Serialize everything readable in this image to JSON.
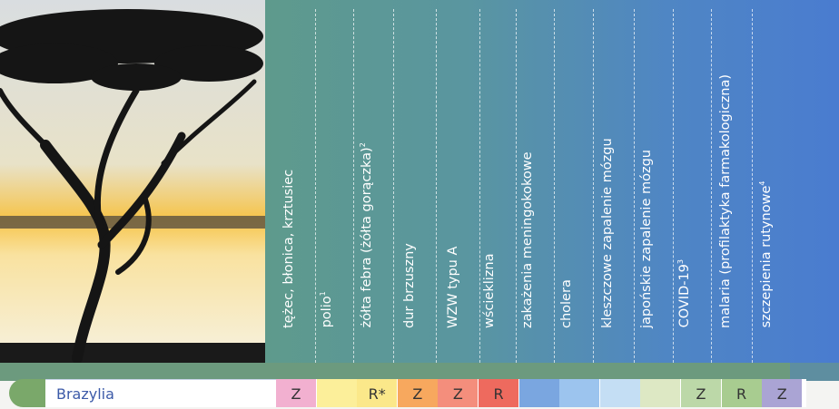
{
  "columns": [
    {
      "label": "tężec, błonica, krztusiec",
      "sup": ""
    },
    {
      "label": "polio",
      "sup": "1"
    },
    {
      "label": "żółta febra (żółta gorączka)",
      "sup": "2"
    },
    {
      "label": "dur brzuszny",
      "sup": ""
    },
    {
      "label": "WZW typu A",
      "sup": ""
    },
    {
      "label": "wścieklizna",
      "sup": ""
    },
    {
      "label": "zakażenia meningokokowe",
      "sup": ""
    },
    {
      "label": "cholera",
      "sup": ""
    },
    {
      "label": "kleszczowe zapalenie mózgu",
      "sup": ""
    },
    {
      "label": "japońskie zapalenie mózgu",
      "sup": ""
    },
    {
      "label": "COVID-19",
      "sup": "3"
    },
    {
      "label": "malaria (profilaktyka farmakologiczna)",
      "sup": ""
    },
    {
      "label": "szczepienia rutynowe",
      "sup": "4"
    }
  ],
  "row": {
    "country": "Brazylia",
    "cells": [
      {
        "value": "Z",
        "color": "#f2b0d0"
      },
      {
        "value": "",
        "color": "#fcef9a"
      },
      {
        "value": "R*",
        "color": "#fbe88a"
      },
      {
        "value": "Z",
        "color": "#f7a85e"
      },
      {
        "value": "Z",
        "color": "#f48e7c"
      },
      {
        "value": "R",
        "color": "#ee6a5e"
      },
      {
        "value": "",
        "color": "#7aa6e0"
      },
      {
        "value": "",
        "color": "#9cc4ee"
      },
      {
        "value": "",
        "color": "#c4def4"
      },
      {
        "value": "",
        "color": "#dde8c4"
      },
      {
        "value": "Z",
        "color": "#bcd8a8"
      },
      {
        "value": "R",
        "color": "#a8cc90"
      },
      {
        "value": "Z",
        "color": "#aaa4d4"
      }
    ]
  }
}
